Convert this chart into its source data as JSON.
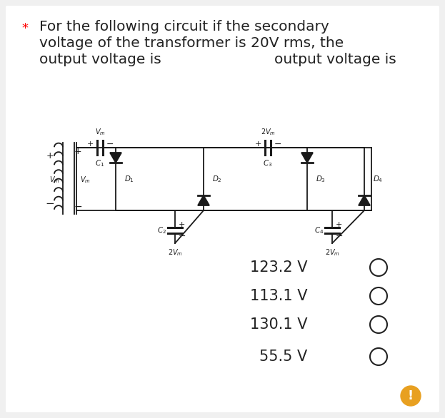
{
  "title_line1": "For the following circuit if the secondary",
  "title_line2": "voltage of the transformer is 20V rms, the",
  "title_line3": "output voltage is",
  "asterisk": "*",
  "options": [
    "123.2 V",
    "113.1 V",
    "130.1 V",
    "55.5 V"
  ],
  "bg_color": "#f0f0f0",
  "panel_color": "#ffffff",
  "text_color": "#222222",
  "circuit_color": "#1a1a1a",
  "option_font_size": 15,
  "title_font_size": 14.5
}
